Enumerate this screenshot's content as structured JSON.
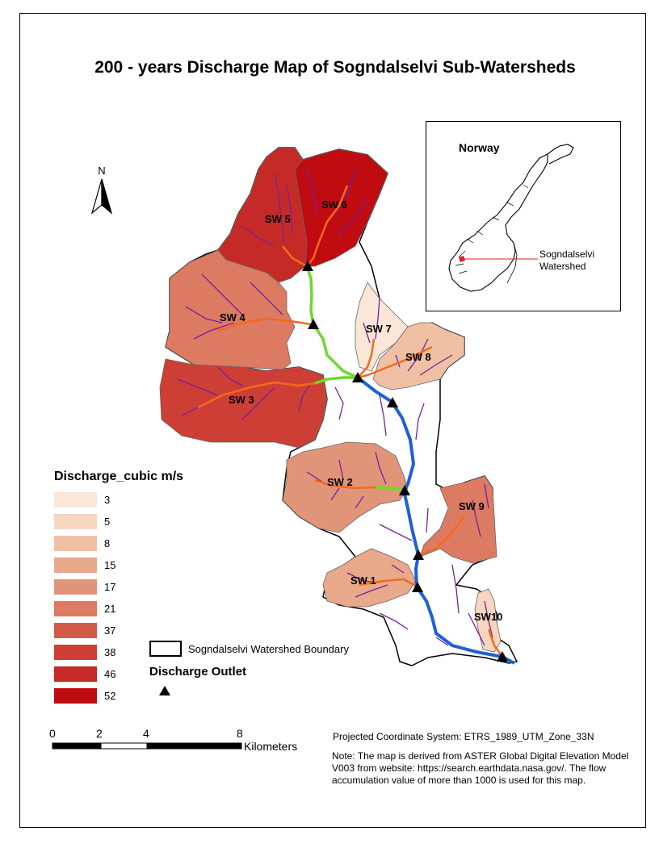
{
  "title": "200 - years Discharge Map of Sogndalselvi Sub-Watersheds",
  "north_arrow": {
    "label": "N"
  },
  "inset": {
    "country": "Norway",
    "watershed_label": "Sogndalselvi Watershed"
  },
  "subwatersheds": [
    {
      "label": "SW 1",
      "discharge": 15
    },
    {
      "label": "SW 2",
      "discharge": 17
    },
    {
      "label": "SW 3",
      "discharge": 38
    },
    {
      "label": "SW 4",
      "discharge": 21
    },
    {
      "label": "SW 5",
      "discharge": 46
    },
    {
      "label": "SW 6",
      "discharge": 52
    },
    {
      "label": "SW 7",
      "discharge": 3
    },
    {
      "label": "SW 8",
      "discharge": 8
    },
    {
      "label": "SW 9",
      "discharge": 21
    },
    {
      "label": "SW10",
      "discharge": 5
    }
  ],
  "legend": {
    "title": "Discharge_cubic m/s",
    "classes": [
      {
        "value": "3",
        "color": "#fbe7d8"
      },
      {
        "value": "5",
        "color": "#f7d6c0"
      },
      {
        "value": "8",
        "color": "#efc0a4"
      },
      {
        "value": "15",
        "color": "#e8a88a"
      },
      {
        "value": "17",
        "color": "#e19578"
      },
      {
        "value": "21",
        "color": "#dc7a62"
      },
      {
        "value": "37",
        "color": "#d25a4b"
      },
      {
        "value": "38",
        "color": "#cd3f35"
      },
      {
        "value": "46",
        "color": "#c52a26"
      },
      {
        "value": "52",
        "color": "#c00b10"
      }
    ],
    "boundary_label": "Sogndalselvi Watershed Boundary",
    "outlet_title": "Discharge Outlet"
  },
  "scale": {
    "ticks": [
      "0",
      "2",
      "4",
      "8"
    ],
    "unit": "Kilometers"
  },
  "projection": "Projected Coordinate System:   ETRS_1989_UTM_Zone_33N",
  "note": "Note: The map is derived from ASTER Global Digital Elevation Model V003 from website: https://search.earthdata.nasa.gov/. The flow accumulation value of more than 1000 is used for this map.",
  "colors": {
    "main_channel": "#1f5fd6",
    "upper_channel": "#6fd82c",
    "tributary": "#f36a1c",
    "minor_stream": "#7a1fa2"
  }
}
